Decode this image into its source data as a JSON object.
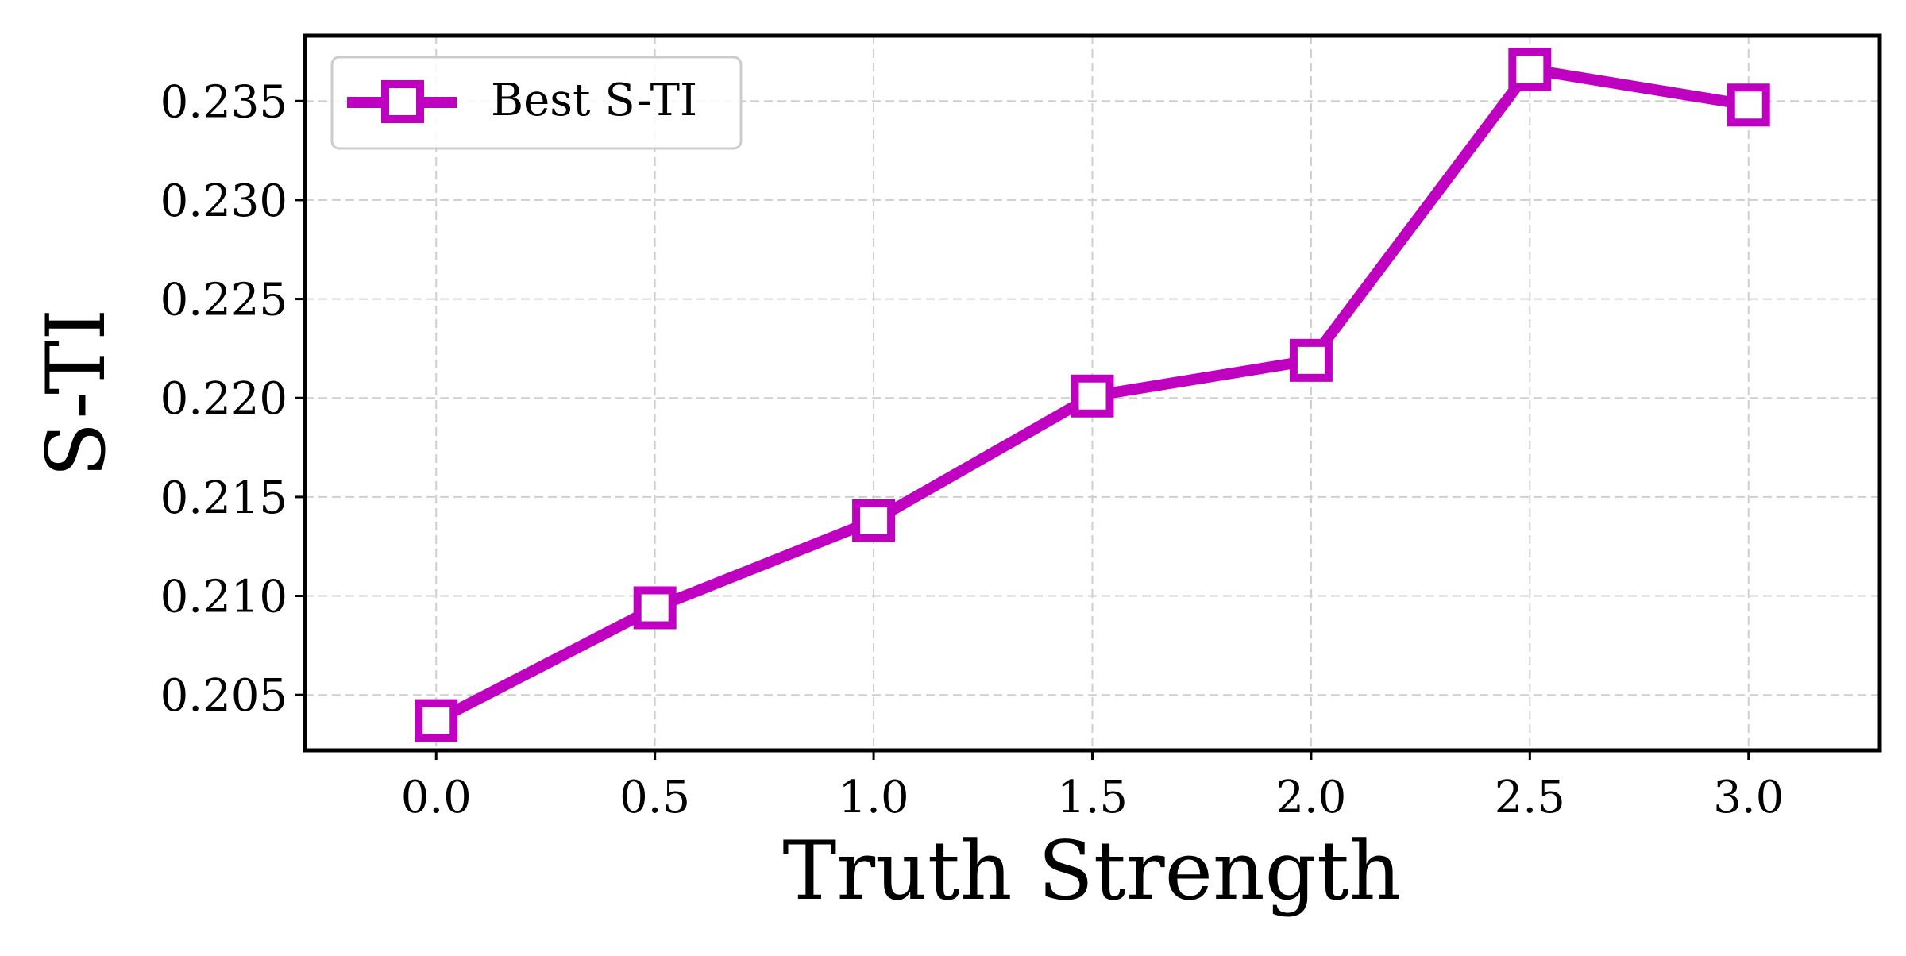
{
  "chart_data": {
    "type": "line",
    "title": "",
    "xlabel": "Truth Strength",
    "ylabel": "S-TI",
    "xlim": [
      -0.3,
      3.3
    ],
    "ylim": [
      0.2022,
      0.2383
    ],
    "x_ticks": [
      0.0,
      0.5,
      1.0,
      1.5,
      2.0,
      2.5,
      3.0
    ],
    "x_tick_labels": [
      "0.0",
      "0.5",
      "1.0",
      "1.5",
      "2.0",
      "2.5",
      "3.0"
    ],
    "y_ticks": [
      0.205,
      0.21,
      0.215,
      0.22,
      0.225,
      0.23,
      0.235
    ],
    "y_tick_labels": [
      "0.205",
      "0.210",
      "0.215",
      "0.220",
      "0.225",
      "0.230",
      "0.235"
    ],
    "grid": true,
    "legend_position": "top-left",
    "series": [
      {
        "name": "Best S-TI",
        "color": "#c000c0",
        "marker": "square-open",
        "x": [
          0.0,
          0.5,
          1.0,
          1.5,
          2.0,
          2.5,
          3.0
        ],
        "y": [
          0.2037,
          0.2094,
          0.2138,
          0.2201,
          0.2219,
          0.2366,
          0.2348
        ]
      }
    ]
  }
}
